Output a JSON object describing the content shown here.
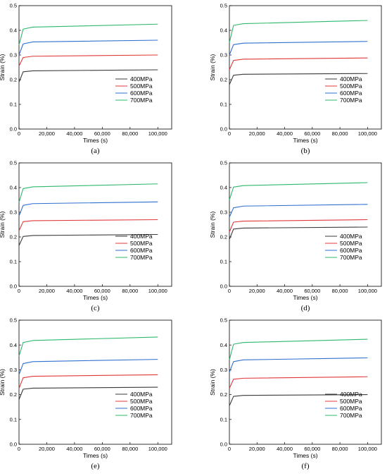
{
  "chart_data": [
    {
      "type": "line",
      "caption": "(a)",
      "xlabel": "Times (s)",
      "ylabel": "Strain (%)",
      "xlim": [
        0,
        110000
      ],
      "ylim": [
        0,
        0.5
      ],
      "xticks": [
        0,
        20000,
        40000,
        60000,
        80000,
        100000
      ],
      "xtick_labels": [
        "0",
        "20,000",
        "40,000",
        "60,000",
        "80,000",
        "100,000"
      ],
      "yticks": [
        0,
        0.1,
        0.2,
        0.3,
        0.4,
        0.5
      ],
      "ytick_labels": [
        "0.0",
        "0.1",
        "0.2",
        "0.3",
        "0.4",
        "0.5"
      ],
      "legend_position": "lower-right",
      "series": [
        {
          "name": "400MPa",
          "color": "#3a3a3a",
          "points": [
            [
              0,
              0.19
            ],
            [
              3000,
              0.232
            ],
            [
              10000,
              0.236
            ],
            [
              100000,
              0.24
            ]
          ]
        },
        {
          "name": "500MPa",
          "color": "#e03838",
          "points": [
            [
              0,
              0.255
            ],
            [
              3000,
              0.29
            ],
            [
              10000,
              0.295
            ],
            [
              100000,
              0.3
            ]
          ]
        },
        {
          "name": "600MPa",
          "color": "#2f6fd0",
          "points": [
            [
              0,
              0.3
            ],
            [
              3000,
              0.345
            ],
            [
              10000,
              0.353
            ],
            [
              100000,
              0.36
            ]
          ]
        },
        {
          "name": "700MPa",
          "color": "#2eb86b",
          "points": [
            [
              0,
              0.34
            ],
            [
              3000,
              0.405
            ],
            [
              10000,
              0.413
            ],
            [
              100000,
              0.425
            ]
          ]
        }
      ]
    },
    {
      "type": "line",
      "caption": "(b)",
      "xlabel": "Times (s)",
      "ylabel": "Strain (%)",
      "xlim": [
        0,
        110000
      ],
      "ylim": [
        0,
        0.5
      ],
      "xticks": [
        0,
        20000,
        40000,
        60000,
        80000,
        100000
      ],
      "xtick_labels": [
        "0",
        "20,000",
        "40,000",
        "60,000",
        "80,000",
        "100,000"
      ],
      "yticks": [
        0,
        0.1,
        0.2,
        0.3,
        0.4,
        0.5
      ],
      "ytick_labels": [
        "0.0",
        "0.1",
        "0.2",
        "0.3",
        "0.4",
        "0.5"
      ],
      "legend_position": "lower-right",
      "series": [
        {
          "name": "400MPa",
          "color": "#3a3a3a",
          "points": [
            [
              0,
              0.18
            ],
            [
              3000,
              0.218
            ],
            [
              10000,
              0.222
            ],
            [
              100000,
              0.225
            ]
          ]
        },
        {
          "name": "500MPa",
          "color": "#e03838",
          "points": [
            [
              0,
              0.24
            ],
            [
              3000,
              0.278
            ],
            [
              10000,
              0.283
            ],
            [
              100000,
              0.288
            ]
          ]
        },
        {
          "name": "600MPa",
          "color": "#2f6fd0",
          "points": [
            [
              0,
              0.3
            ],
            [
              3000,
              0.342
            ],
            [
              10000,
              0.348
            ],
            [
              100000,
              0.355
            ]
          ]
        },
        {
          "name": "700MPa",
          "color": "#2eb86b",
          "points": [
            [
              0,
              0.35
            ],
            [
              3000,
              0.42
            ],
            [
              10000,
              0.427
            ],
            [
              100000,
              0.44
            ]
          ]
        }
      ]
    },
    {
      "type": "line",
      "caption": "(c)",
      "xlabel": "Times (s)",
      "ylabel": "Strain (%)",
      "xlim": [
        0,
        110000
      ],
      "ylim": [
        0,
        0.5
      ],
      "xticks": [
        0,
        20000,
        40000,
        60000,
        80000,
        100000
      ],
      "xtick_labels": [
        "0",
        "20,000",
        "40,000",
        "60,000",
        "80,000",
        "100,000"
      ],
      "yticks": [
        0,
        0.1,
        0.2,
        0.3,
        0.4,
        0.5
      ],
      "ytick_labels": [
        "0.0",
        "0.1",
        "0.2",
        "0.3",
        "0.4",
        "0.5"
      ],
      "legend_position": "lower-right",
      "series": [
        {
          "name": "400MPa",
          "color": "#3a3a3a",
          "points": [
            [
              0,
              0.165
            ],
            [
              3000,
              0.202
            ],
            [
              10000,
              0.206
            ],
            [
              100000,
              0.21
            ]
          ]
        },
        {
          "name": "500MPa",
          "color": "#e03838",
          "points": [
            [
              0,
              0.225
            ],
            [
              3000,
              0.262
            ],
            [
              10000,
              0.266
            ],
            [
              100000,
              0.27
            ]
          ]
        },
        {
          "name": "600MPa",
          "color": "#2f6fd0",
          "points": [
            [
              0,
              0.285
            ],
            [
              3000,
              0.328
            ],
            [
              10000,
              0.335
            ],
            [
              100000,
              0.342
            ]
          ]
        },
        {
          "name": "700MPa",
          "color": "#2eb86b",
          "points": [
            [
              0,
              0.34
            ],
            [
              3000,
              0.396
            ],
            [
              10000,
              0.403
            ],
            [
              100000,
              0.415
            ]
          ]
        }
      ]
    },
    {
      "type": "line",
      "caption": "(d)",
      "xlabel": "Times (s)",
      "ylabel": "Strain (%)",
      "xlim": [
        0,
        110000
      ],
      "ylim": [
        0,
        0.5
      ],
      "xticks": [
        0,
        20000,
        40000,
        60000,
        80000,
        100000
      ],
      "xtick_labels": [
        "0",
        "20,000",
        "40,000",
        "60,000",
        "80,000",
        "100,000"
      ],
      "yticks": [
        0,
        0.1,
        0.2,
        0.3,
        0.4,
        0.5
      ],
      "ytick_labels": [
        "0.0",
        "0.1",
        "0.2",
        "0.3",
        "0.4",
        "0.5"
      ],
      "legend_position": "lower-right",
      "series": [
        {
          "name": "400MPa",
          "color": "#3a3a3a",
          "points": [
            [
              0,
              0.19
            ],
            [
              3000,
              0.232
            ],
            [
              10000,
              0.236
            ],
            [
              100000,
              0.24
            ]
          ]
        },
        {
          "name": "500MPa",
          "color": "#e03838",
          "points": [
            [
              0,
              0.22
            ],
            [
              3000,
              0.26
            ],
            [
              10000,
              0.264
            ],
            [
              100000,
              0.27
            ]
          ]
        },
        {
          "name": "600MPa",
          "color": "#2f6fd0",
          "points": [
            [
              0,
              0.28
            ],
            [
              3000,
              0.318
            ],
            [
              10000,
              0.325
            ],
            [
              100000,
              0.332
            ]
          ]
        },
        {
          "name": "700MPa",
          "color": "#2eb86b",
          "points": [
            [
              0,
              0.35
            ],
            [
              3000,
              0.402
            ],
            [
              10000,
              0.408
            ],
            [
              100000,
              0.42
            ]
          ]
        }
      ]
    },
    {
      "type": "line",
      "caption": "(e)",
      "xlabel": "Times (s)",
      "ylabel": "Strain (%)",
      "xlim": [
        0,
        110000
      ],
      "ylim": [
        0,
        0.5
      ],
      "xticks": [
        0,
        20000,
        40000,
        60000,
        80000,
        100000
      ],
      "xtick_labels": [
        "0",
        "20,000",
        "40,000",
        "60,000",
        "80,000",
        "100,000"
      ],
      "yticks": [
        0,
        0.1,
        0.2,
        0.3,
        0.4,
        0.5
      ],
      "ytick_labels": [
        "0.0",
        "0.1",
        "0.2",
        "0.3",
        "0.4",
        "0.5"
      ],
      "legend_position": "lower-right",
      "series": [
        {
          "name": "400MPa",
          "color": "#3a3a3a",
          "points": [
            [
              0,
              0.18
            ],
            [
              3000,
              0.222
            ],
            [
              10000,
              0.226
            ],
            [
              100000,
              0.23
            ]
          ]
        },
        {
          "name": "500MPa",
          "color": "#e03838",
          "points": [
            [
              0,
              0.225
            ],
            [
              3000,
              0.268
            ],
            [
              10000,
              0.274
            ],
            [
              100000,
              0.28
            ]
          ]
        },
        {
          "name": "600MPa",
          "color": "#2f6fd0",
          "points": [
            [
              0,
              0.28
            ],
            [
              3000,
              0.325
            ],
            [
              10000,
              0.333
            ],
            [
              100000,
              0.342
            ]
          ]
        },
        {
          "name": "700MPa",
          "color": "#2eb86b",
          "points": [
            [
              0,
              0.355
            ],
            [
              3000,
              0.41
            ],
            [
              10000,
              0.418
            ],
            [
              100000,
              0.432
            ]
          ]
        }
      ]
    },
    {
      "type": "line",
      "caption": "(f)",
      "xlabel": "Times (s)",
      "ylabel": "Strain (%)",
      "xlim": [
        0,
        110000
      ],
      "ylim": [
        0,
        0.5
      ],
      "xticks": [
        0,
        20000,
        40000,
        60000,
        80000,
        100000
      ],
      "xtick_labels": [
        "0",
        "20,000",
        "40,000",
        "60,000",
        "80,000",
        "100,000"
      ],
      "yticks": [
        0,
        0.1,
        0.2,
        0.3,
        0.4,
        0.5
      ],
      "ytick_labels": [
        "0.0",
        "0.1",
        "0.2",
        "0.3",
        "0.4",
        "0.5"
      ],
      "legend_position": "lower-right",
      "series": [
        {
          "name": "400MPa",
          "color": "#3a3a3a",
          "points": [
            [
              0,
              0.155
            ],
            [
              3000,
              0.193
            ],
            [
              10000,
              0.197
            ],
            [
              100000,
              0.2
            ]
          ]
        },
        {
          "name": "500MPa",
          "color": "#e03838",
          "points": [
            [
              0,
              0.225
            ],
            [
              3000,
              0.262
            ],
            [
              10000,
              0.266
            ],
            [
              100000,
              0.272
            ]
          ]
        },
        {
          "name": "600MPa",
          "color": "#2f6fd0",
          "points": [
            [
              0,
              0.29
            ],
            [
              3000,
              0.333
            ],
            [
              10000,
              0.34
            ],
            [
              100000,
              0.348
            ]
          ]
        },
        {
          "name": "700MPa",
          "color": "#2eb86b",
          "points": [
            [
              0,
              0.34
            ],
            [
              3000,
              0.403
            ],
            [
              10000,
              0.41
            ],
            [
              100000,
              0.423
            ]
          ]
        }
      ]
    }
  ]
}
